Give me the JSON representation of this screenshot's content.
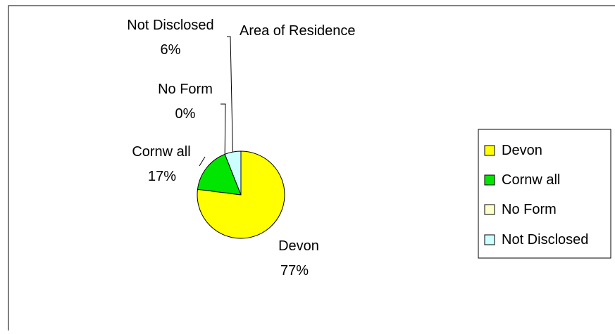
{
  "chart_data": {
    "type": "pie",
    "title": "Area of Residence",
    "categories": [
      "Devon",
      "Cornw all",
      "No Form",
      "Not Disclosed"
    ],
    "values": [
      77,
      17,
      0,
      6
    ],
    "percent_labels": [
      "77%",
      "17%",
      "0%",
      "6%"
    ],
    "colors": [
      "#FFFF00",
      "#00E600",
      "#FFFFCC",
      "#CCFFFF"
    ],
    "legend": {
      "placement": "right",
      "entries": [
        "Devon",
        "Cornw all",
        "No Form",
        "Not Disclosed"
      ]
    }
  }
}
